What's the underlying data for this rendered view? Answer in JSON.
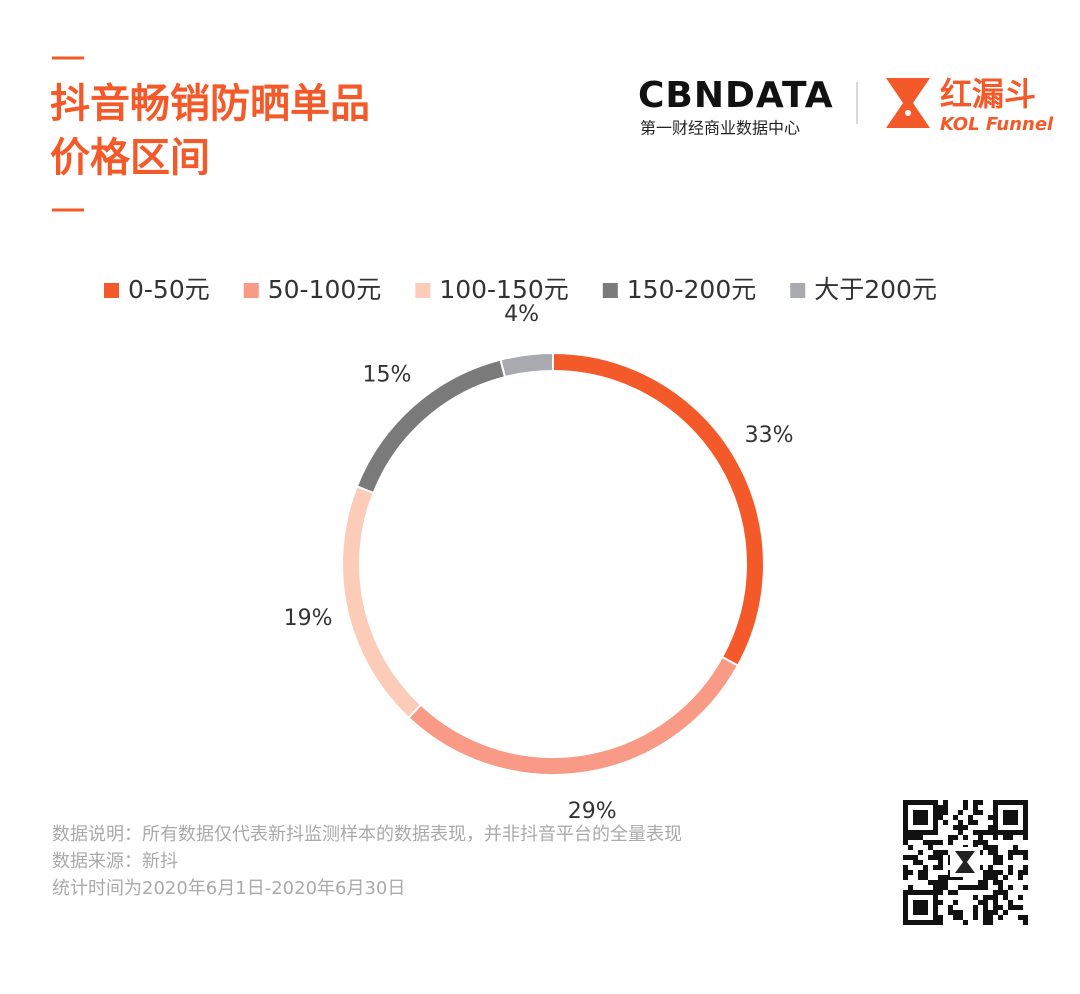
{
  "chart_data": {
    "type": "donut",
    "title": [
      "抖音畅销防晒单品",
      "价格区间"
    ],
    "brand": {
      "name": "CBNDATA",
      "tagline": "第一财经商业数据中心",
      "partner": "红漏斗",
      "partner_en": "KOL Funnel"
    },
    "categories": [
      "0-50元",
      "50-100元",
      "100-150元",
      "150-200元",
      "大于200元"
    ],
    "values": [
      33,
      29,
      19,
      15,
      4
    ],
    "value_labels": [
      "33%",
      "29%",
      "19%",
      "15%",
      "4%"
    ],
    "colors": [
      "#f4592a",
      "#f89a86",
      "#fcccb9",
      "#7a7a7a",
      "#a8aab0"
    ],
    "legend": "top",
    "notes": [
      "数据说明：所有数据仅代表新抖监测样本的数据表现，并非抖音平台的全量表现",
      "数据来源：新抖",
      "统计时间为2020年6月1日-2020年6月30日"
    ]
  }
}
